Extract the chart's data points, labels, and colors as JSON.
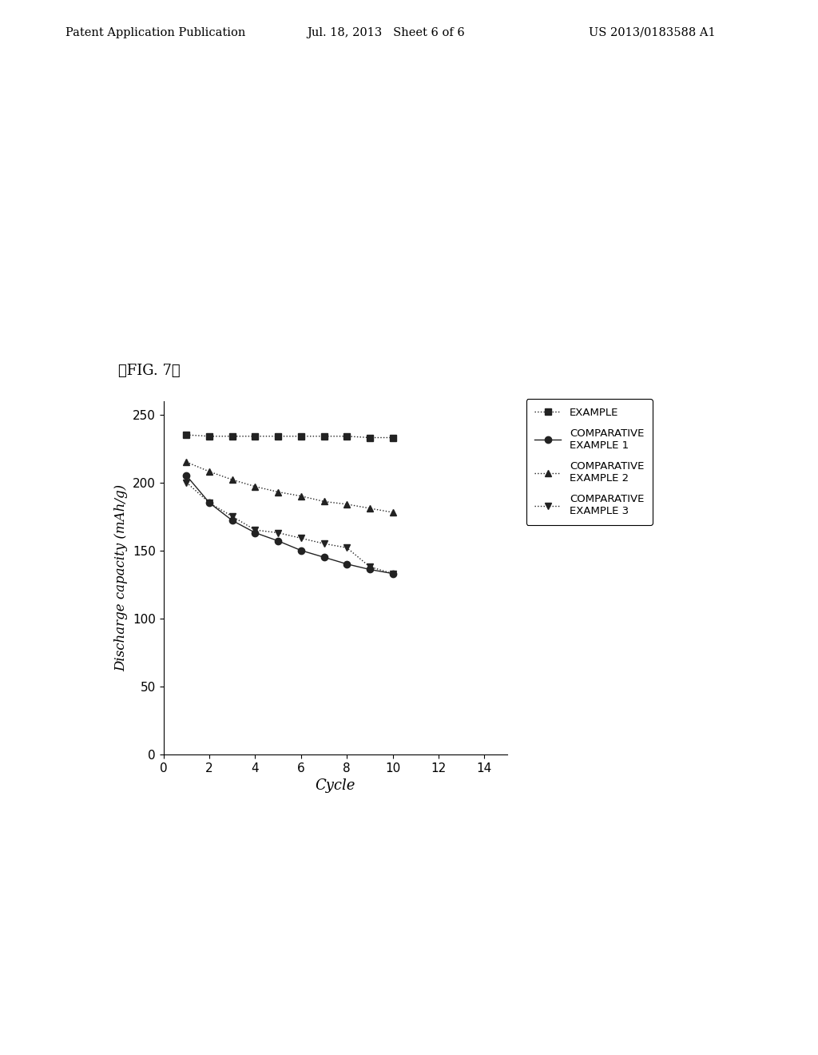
{
  "fig_label": "【FIG. 7】",
  "header_left": "Patent Application Publication",
  "header_mid": "Jul. 18, 2013   Sheet 6 of 6",
  "header_right": "US 2013/0183588 A1",
  "xlabel": "Cycle",
  "ylabel": "Discharge capacity (mAh/g)",
  "xlim": [
    0,
    15
  ],
  "ylim": [
    0,
    260
  ],
  "xticks": [
    0,
    2,
    4,
    6,
    8,
    10,
    12,
    14
  ],
  "yticks": [
    0,
    50,
    100,
    150,
    200,
    250
  ],
  "series": [
    {
      "label": "EXAMPLE",
      "x": [
        1,
        2,
        3,
        4,
        5,
        6,
        7,
        8,
        9,
        10
      ],
      "y": [
        235,
        234,
        234,
        234,
        234,
        234,
        234,
        234,
        233,
        233
      ],
      "marker": "s",
      "color": "#222222",
      "linestyle": ":"
    },
    {
      "label": "COMPARATIVE\nEXAMPLE 1",
      "x": [
        1,
        2,
        3,
        4,
        5,
        6,
        7,
        8,
        9,
        10
      ],
      "y": [
        205,
        185,
        172,
        163,
        157,
        150,
        145,
        140,
        136,
        133
      ],
      "marker": "o",
      "color": "#222222",
      "linestyle": "-"
    },
    {
      "label": "COMPARATIVE\nEXAMPLE 2",
      "x": [
        1,
        2,
        3,
        4,
        5,
        6,
        7,
        8,
        9,
        10
      ],
      "y": [
        215,
        208,
        202,
        197,
        193,
        190,
        186,
        184,
        181,
        178
      ],
      "marker": "^",
      "color": "#222222",
      "linestyle": ":"
    },
    {
      "label": "COMPARATIVE\nEXAMPLE 3",
      "x": [
        1,
        2,
        3,
        4,
        5,
        6,
        7,
        8,
        9,
        10
      ],
      "y": [
        200,
        185,
        175,
        165,
        163,
        159,
        155,
        152,
        138,
        133
      ],
      "marker": "v",
      "color": "#222222",
      "linestyle": ":"
    }
  ],
  "background_color": "#ffffff"
}
